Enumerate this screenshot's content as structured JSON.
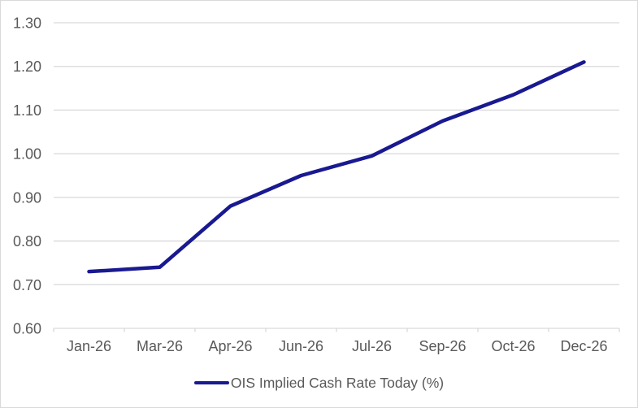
{
  "chart_data": {
    "type": "line",
    "title": "",
    "categories": [
      "Jan-26",
      "Mar-26",
      "Apr-26",
      "Jun-26",
      "Jul-26",
      "Sep-26",
      "Oct-26",
      "Dec-26"
    ],
    "series": [
      {
        "name": "OIS Implied Cash Rate Today (%)",
        "values": [
          0.73,
          0.74,
          0.88,
          0.95,
          0.995,
          1.075,
          1.135,
          1.21
        ]
      }
    ],
    "xlabel": "",
    "ylabel": "",
    "ylim": [
      0.6,
      1.3
    ],
    "ytick_step": 0.1,
    "yticks": [
      {
        "value": 0.6,
        "label": "0.60"
      },
      {
        "value": 0.7,
        "label": "0.70"
      },
      {
        "value": 0.8,
        "label": "0.80"
      },
      {
        "value": 0.9,
        "label": "0.90"
      },
      {
        "value": 1.0,
        "label": "1.00"
      },
      {
        "value": 1.1,
        "label": "1.10"
      },
      {
        "value": 1.2,
        "label": "1.20"
      },
      {
        "value": 1.3,
        "label": "1.30"
      }
    ],
    "grid": "horizontal-only",
    "legend_position": "bottom-center",
    "colors": {
      "series_line": "#191991",
      "gridline": "#d9d9d9",
      "axis_line": "#d9d9d9",
      "tick_label": "#595959",
      "legend_text": "#595959",
      "chart_border": "#d9d9d9",
      "background": "#ffffff"
    }
  }
}
